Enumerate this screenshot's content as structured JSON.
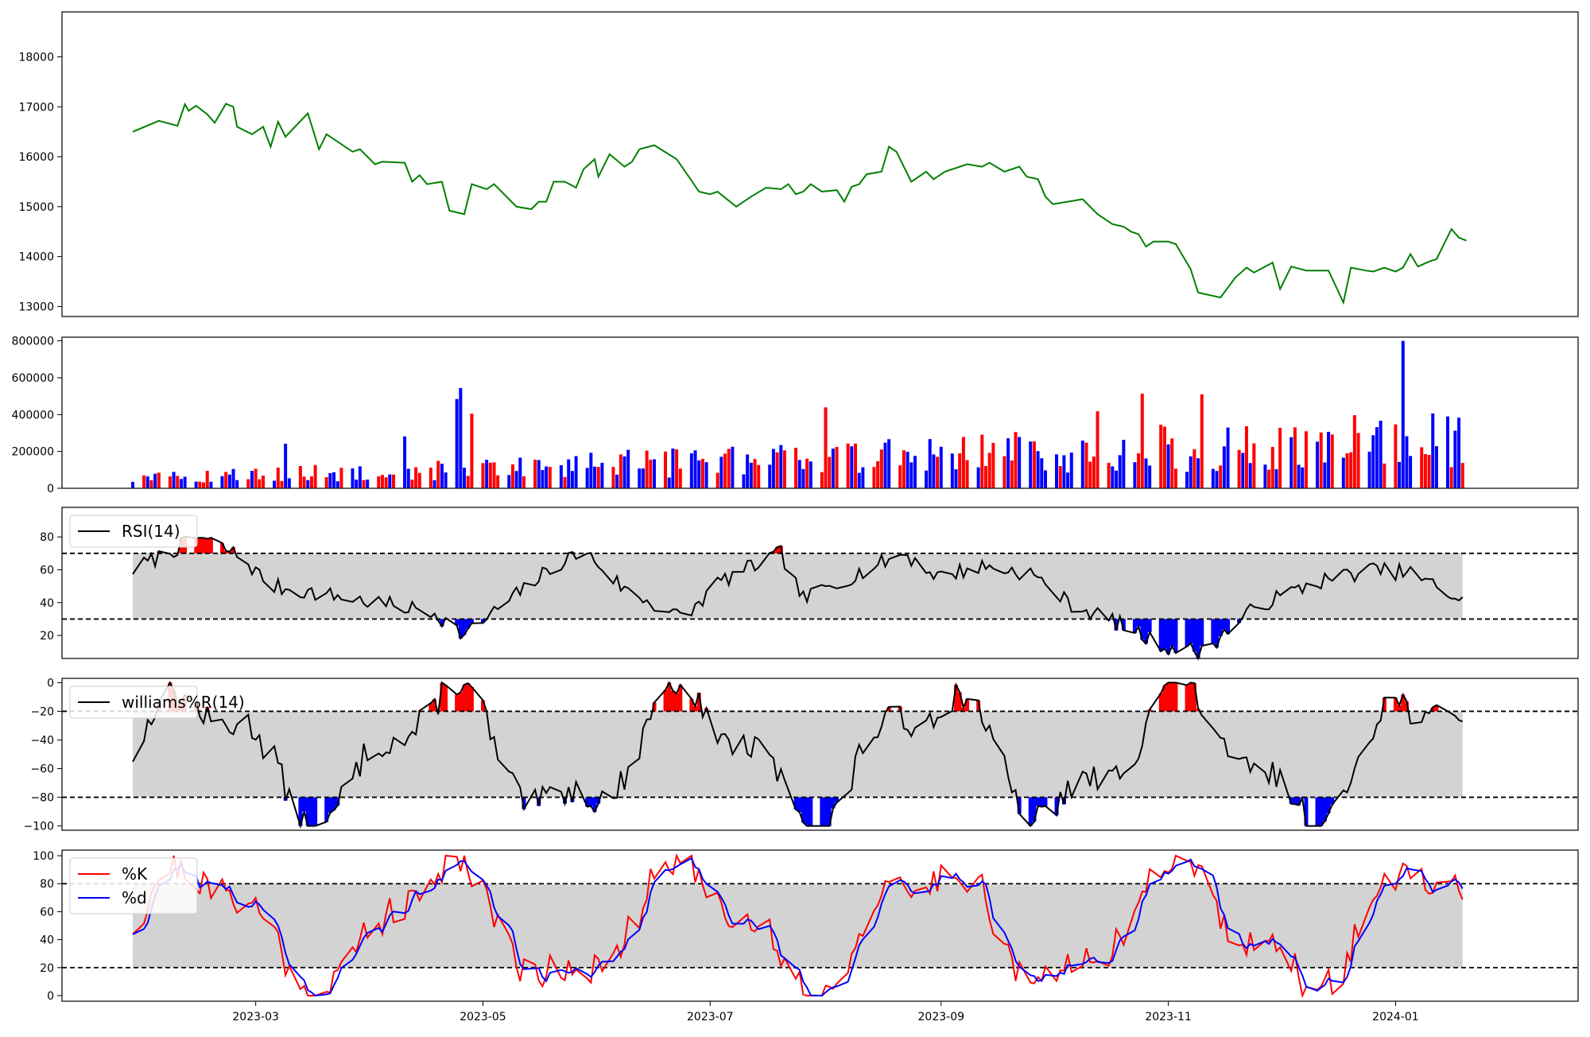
{
  "chart_data": {
    "type": "line",
    "x_axis": {
      "type": "date",
      "xlim": [
        "2023-01-08",
        "2024-02-19"
      ],
      "tick_dates": [
        "2023-03-01",
        "2023-05-01",
        "2023-07-01",
        "2023-09-01",
        "2023-11-01",
        "2024-01-01"
      ],
      "tick_labels": [
        "2023-03",
        "2023-05",
        "2023-07",
        "2023-09",
        "2023-11",
        "2024-01"
      ]
    },
    "panels": [
      {
        "id": "price",
        "type": "line",
        "ylim": [
          12800,
          18900
        ],
        "yticks": [
          13000,
          14000,
          15000,
          16000,
          17000,
          18000
        ],
        "series": [
          {
            "color": "#008000",
            "points": [
              [
                "2023-01-27",
                16500
              ],
              [
                "2023-02-03",
                16720
              ],
              [
                "2023-02-08",
                16620
              ],
              [
                "2023-02-10",
                17050
              ],
              [
                "2023-02-11",
                16920
              ],
              [
                "2023-02-13",
                17020
              ],
              [
                "2023-02-16",
                16850
              ],
              [
                "2023-02-18",
                16680
              ],
              [
                "2023-02-21",
                17060
              ],
              [
                "2023-02-23",
                17000
              ],
              [
                "2023-02-24",
                16600
              ],
              [
                "2023-02-28",
                16450
              ],
              [
                "2023-03-03",
                16600
              ],
              [
                "2023-03-05",
                16200
              ],
              [
                "2023-03-07",
                16700
              ],
              [
                "2023-03-09",
                16400
              ],
              [
                "2023-03-15",
                16870
              ],
              [
                "2023-03-18",
                16150
              ],
              [
                "2023-03-20",
                16450
              ],
              [
                "2023-03-27",
                16100
              ],
              [
                "2023-03-29",
                16150
              ],
              [
                "2023-04-02",
                15850
              ],
              [
                "2023-04-04",
                15900
              ],
              [
                "2023-04-10",
                15880
              ],
              [
                "2023-04-12",
                15500
              ],
              [
                "2023-04-14",
                15630
              ],
              [
                "2023-04-16",
                15450
              ],
              [
                "2023-04-20",
                15500
              ],
              [
                "2023-04-22",
                14920
              ],
              [
                "2023-04-26",
                14850
              ],
              [
                "2023-04-28",
                15450
              ],
              [
                "2023-05-02",
                15350
              ],
              [
                "2023-05-04",
                15450
              ],
              [
                "2023-05-08",
                15150
              ],
              [
                "2023-05-10",
                15000
              ],
              [
                "2023-05-14",
                14950
              ],
              [
                "2023-05-16",
                15100
              ],
              [
                "2023-05-18",
                15100
              ],
              [
                "2023-05-20",
                15500
              ],
              [
                "2023-05-23",
                15500
              ],
              [
                "2023-05-26",
                15380
              ],
              [
                "2023-05-28",
                15750
              ],
              [
                "2023-05-31",
                15950
              ],
              [
                "2023-06-01",
                15600
              ],
              [
                "2023-06-04",
                16050
              ],
              [
                "2023-06-08",
                15800
              ],
              [
                "2023-06-10",
                15900
              ],
              [
                "2023-06-12",
                16150
              ],
              [
                "2023-06-16",
                16230
              ],
              [
                "2023-06-22",
                15950
              ],
              [
                "2023-06-26",
                15520
              ],
              [
                "2023-06-28",
                15300
              ],
              [
                "2023-07-01",
                15250
              ],
              [
                "2023-07-03",
                15300
              ],
              [
                "2023-07-08",
                15000
              ],
              [
                "2023-07-12",
                15200
              ],
              [
                "2023-07-16",
                15380
              ],
              [
                "2023-07-20",
                15350
              ],
              [
                "2023-07-22",
                15450
              ],
              [
                "2023-07-24",
                15250
              ],
              [
                "2023-07-26",
                15300
              ],
              [
                "2023-07-28",
                15450
              ],
              [
                "2023-07-31",
                15300
              ],
              [
                "2023-08-04",
                15330
              ],
              [
                "2023-08-06",
                15100
              ],
              [
                "2023-08-08",
                15400
              ],
              [
                "2023-08-10",
                15450
              ],
              [
                "2023-08-12",
                15650
              ],
              [
                "2023-08-16",
                15700
              ],
              [
                "2023-08-18",
                16200
              ],
              [
                "2023-08-20",
                16100
              ],
              [
                "2023-08-24",
                15500
              ],
              [
                "2023-08-28",
                15700
              ],
              [
                "2023-08-30",
                15550
              ],
              [
                "2023-09-02",
                15700
              ],
              [
                "2023-09-08",
                15850
              ],
              [
                "2023-09-12",
                15800
              ],
              [
                "2023-09-14",
                15880
              ],
              [
                "2023-09-18",
                15700
              ],
              [
                "2023-09-22",
                15800
              ],
              [
                "2023-09-24",
                15600
              ],
              [
                "2023-09-27",
                15550
              ],
              [
                "2023-09-29",
                15200
              ],
              [
                "2023-10-01",
                15050
              ],
              [
                "2023-10-05",
                15100
              ],
              [
                "2023-10-09",
                15150
              ],
              [
                "2023-10-13",
                14850
              ],
              [
                "2023-10-17",
                14650
              ],
              [
                "2023-10-20",
                14600
              ],
              [
                "2023-10-22",
                14500
              ],
              [
                "2023-10-24",
                14450
              ],
              [
                "2023-10-26",
                14200
              ],
              [
                "2023-10-28",
                14300
              ],
              [
                "2023-11-01",
                14300
              ],
              [
                "2023-11-03",
                14250
              ],
              [
                "2023-11-07",
                13750
              ],
              [
                "2023-11-09",
                13280
              ],
              [
                "2023-11-15",
                13180
              ],
              [
                "2023-11-19",
                13580
              ],
              [
                "2023-11-22",
                13780
              ],
              [
                "2023-11-24",
                13680
              ],
              [
                "2023-11-29",
                13880
              ],
              [
                "2023-12-01",
                13350
              ],
              [
                "2023-12-04",
                13800
              ],
              [
                "2023-12-08",
                13720
              ],
              [
                "2023-12-14",
                13720
              ],
              [
                "2023-12-18",
                13080
              ],
              [
                "2023-12-20",
                13780
              ],
              [
                "2023-12-24",
                13720
              ],
              [
                "2023-12-26",
                13700
              ],
              [
                "2023-12-29",
                13780
              ],
              [
                "2024-01-01",
                13700
              ],
              [
                "2024-01-03",
                13780
              ],
              [
                "2024-01-05",
                14050
              ],
              [
                "2024-01-07",
                13800
              ],
              [
                "2024-01-10",
                13900
              ],
              [
                "2024-01-12",
                13950
              ],
              [
                "2024-01-16",
                14550
              ],
              [
                "2024-01-18",
                14380
              ],
              [
                "2024-01-20",
                14320
              ]
            ]
          }
        ]
      },
      {
        "id": "volume",
        "type": "bar",
        "ylim": [
          0,
          820000
        ],
        "yticks": [
          0,
          200000,
          400000,
          600000,
          800000
        ],
        "colors": {
          "up": "#ff0000",
          "down": "#0000ff",
          "flat": "#000000"
        }
      },
      {
        "id": "rsi",
        "type": "line",
        "legend": [
          "RSI(14)"
        ],
        "ylim": [
          6,
          98
        ],
        "yticks": [
          20,
          40,
          60,
          80
        ],
        "band": [
          30,
          70
        ],
        "fill_colors": {
          "above": "#ff0000",
          "below": "#0000ff",
          "band": "#d3d3d3"
        }
      },
      {
        "id": "williams",
        "type": "line",
        "legend": [
          "williams%R(14)"
        ],
        "ylim": [
          -103,
          3
        ],
        "yticks": [
          0,
          -20,
          -40,
          -60,
          -80,
          -100
        ],
        "band": [
          -80,
          -20
        ],
        "fill_colors": {
          "above": "#ff0000",
          "below": "#0000ff",
          "band": "#d3d3d3"
        }
      },
      {
        "id": "stochastic",
        "type": "line",
        "legend": [
          "%K",
          "%d"
        ],
        "ylim": [
          -4,
          104
        ],
        "yticks": [
          0,
          20,
          40,
          60,
          80,
          100
        ],
        "band": [
          20,
          80
        ],
        "colors": {
          "%K": "#ff0000",
          "%d": "#0000ff"
        }
      }
    ]
  }
}
